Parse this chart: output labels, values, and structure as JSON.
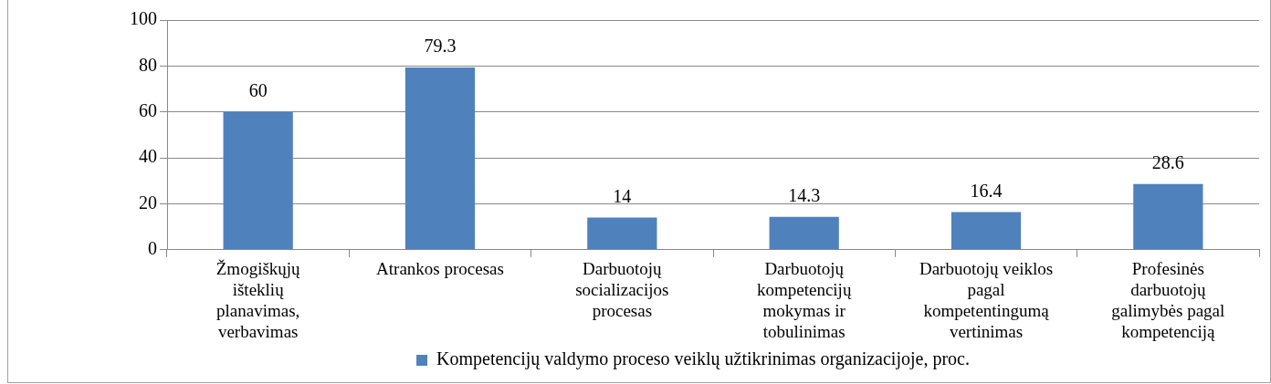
{
  "chart_data": {
    "type": "bar",
    "categories": [
      "Žmogiškųjų\ništeklių\nplanavimas,\nverbavimas",
      "Atrankos procesas",
      "Darbuotojų\nsocializacijos\nprocesas",
      "Darbuotojų\nkompetencijų\nmokymas ir\ntobulinimas",
      "Darbuotojų veiklos\npagal\nkompetentingumą\nvertinimas",
      "Profesinės\ndarbuotojų\ngalimybės pagal\nkompetenciją"
    ],
    "series": [
      {
        "name": "Kompetencijų valdymo proceso veiklų užtikrinimas organizacijoje, proc.",
        "color": "#4f81bd",
        "values": [
          60,
          79.3,
          14,
          14.3,
          16.4,
          28.6
        ]
      }
    ],
    "ylim": [
      0,
      100
    ],
    "yticks": [
      0,
      20,
      40,
      60,
      80,
      100
    ],
    "grid": "y",
    "legend": "bottom",
    "data_labels": true
  }
}
